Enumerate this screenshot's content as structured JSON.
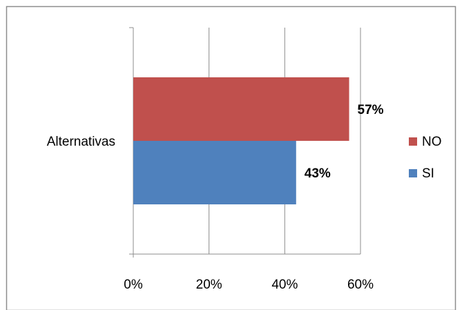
{
  "chart_data": {
    "type": "bar",
    "orientation": "horizontal",
    "categories": [
      "Alternativas"
    ],
    "series": [
      {
        "name": "SI",
        "values": [
          43
        ],
        "color": "#4f81bd",
        "data_label": "43%"
      },
      {
        "name": "NO",
        "values": [
          57
        ],
        "color": "#c0504d",
        "data_label": "57%"
      }
    ],
    "xlim": [
      0,
      60
    ],
    "x_ticks": [
      "0%",
      "20%",
      "40%",
      "60%"
    ],
    "grid": "vertical",
    "legend_placement": "right",
    "legend_order": [
      "NO",
      "SI"
    ],
    "title": "",
    "xlabel": "",
    "ylabel": ""
  }
}
